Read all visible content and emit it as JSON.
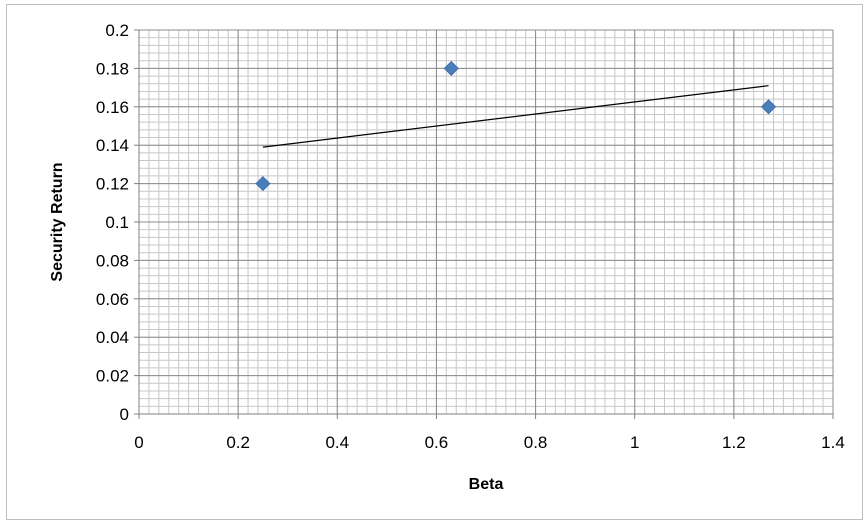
{
  "chart_data": {
    "type": "scatter",
    "title": "",
    "xlabel": "Beta",
    "ylabel": "Security Return",
    "xlim": [
      0,
      1.4
    ],
    "ylim": [
      0,
      0.2
    ],
    "x_ticks": [
      "0",
      "0.2",
      "0.4",
      "0.6",
      "0.8",
      "1",
      "1.2",
      "1.4"
    ],
    "y_ticks": [
      "0",
      "0.02",
      "0.04",
      "0.06",
      "0.08",
      "0.1",
      "0.12",
      "0.14",
      "0.16",
      "0.18",
      "0.2"
    ],
    "x_tick_values": [
      0,
      0.2,
      0.4,
      0.6,
      0.8,
      1.0,
      1.2,
      1.4
    ],
    "y_tick_values": [
      0,
      0.02,
      0.04,
      0.06,
      0.08,
      0.1,
      0.12,
      0.14,
      0.16,
      0.18,
      0.2
    ],
    "grid": true,
    "legend": "none",
    "series": [
      {
        "marker": "diamond",
        "color": "#4a7ebb",
        "points": [
          {
            "x": 0.25,
            "y": 0.12
          },
          {
            "x": 0.63,
            "y": 0.18
          },
          {
            "x": 1.27,
            "y": 0.16
          }
        ]
      }
    ],
    "trendline": {
      "type": "linear",
      "color": "#000000",
      "points": [
        {
          "x": 0.25,
          "y": 0.139
        },
        {
          "x": 1.27,
          "y": 0.171
        }
      ]
    }
  }
}
